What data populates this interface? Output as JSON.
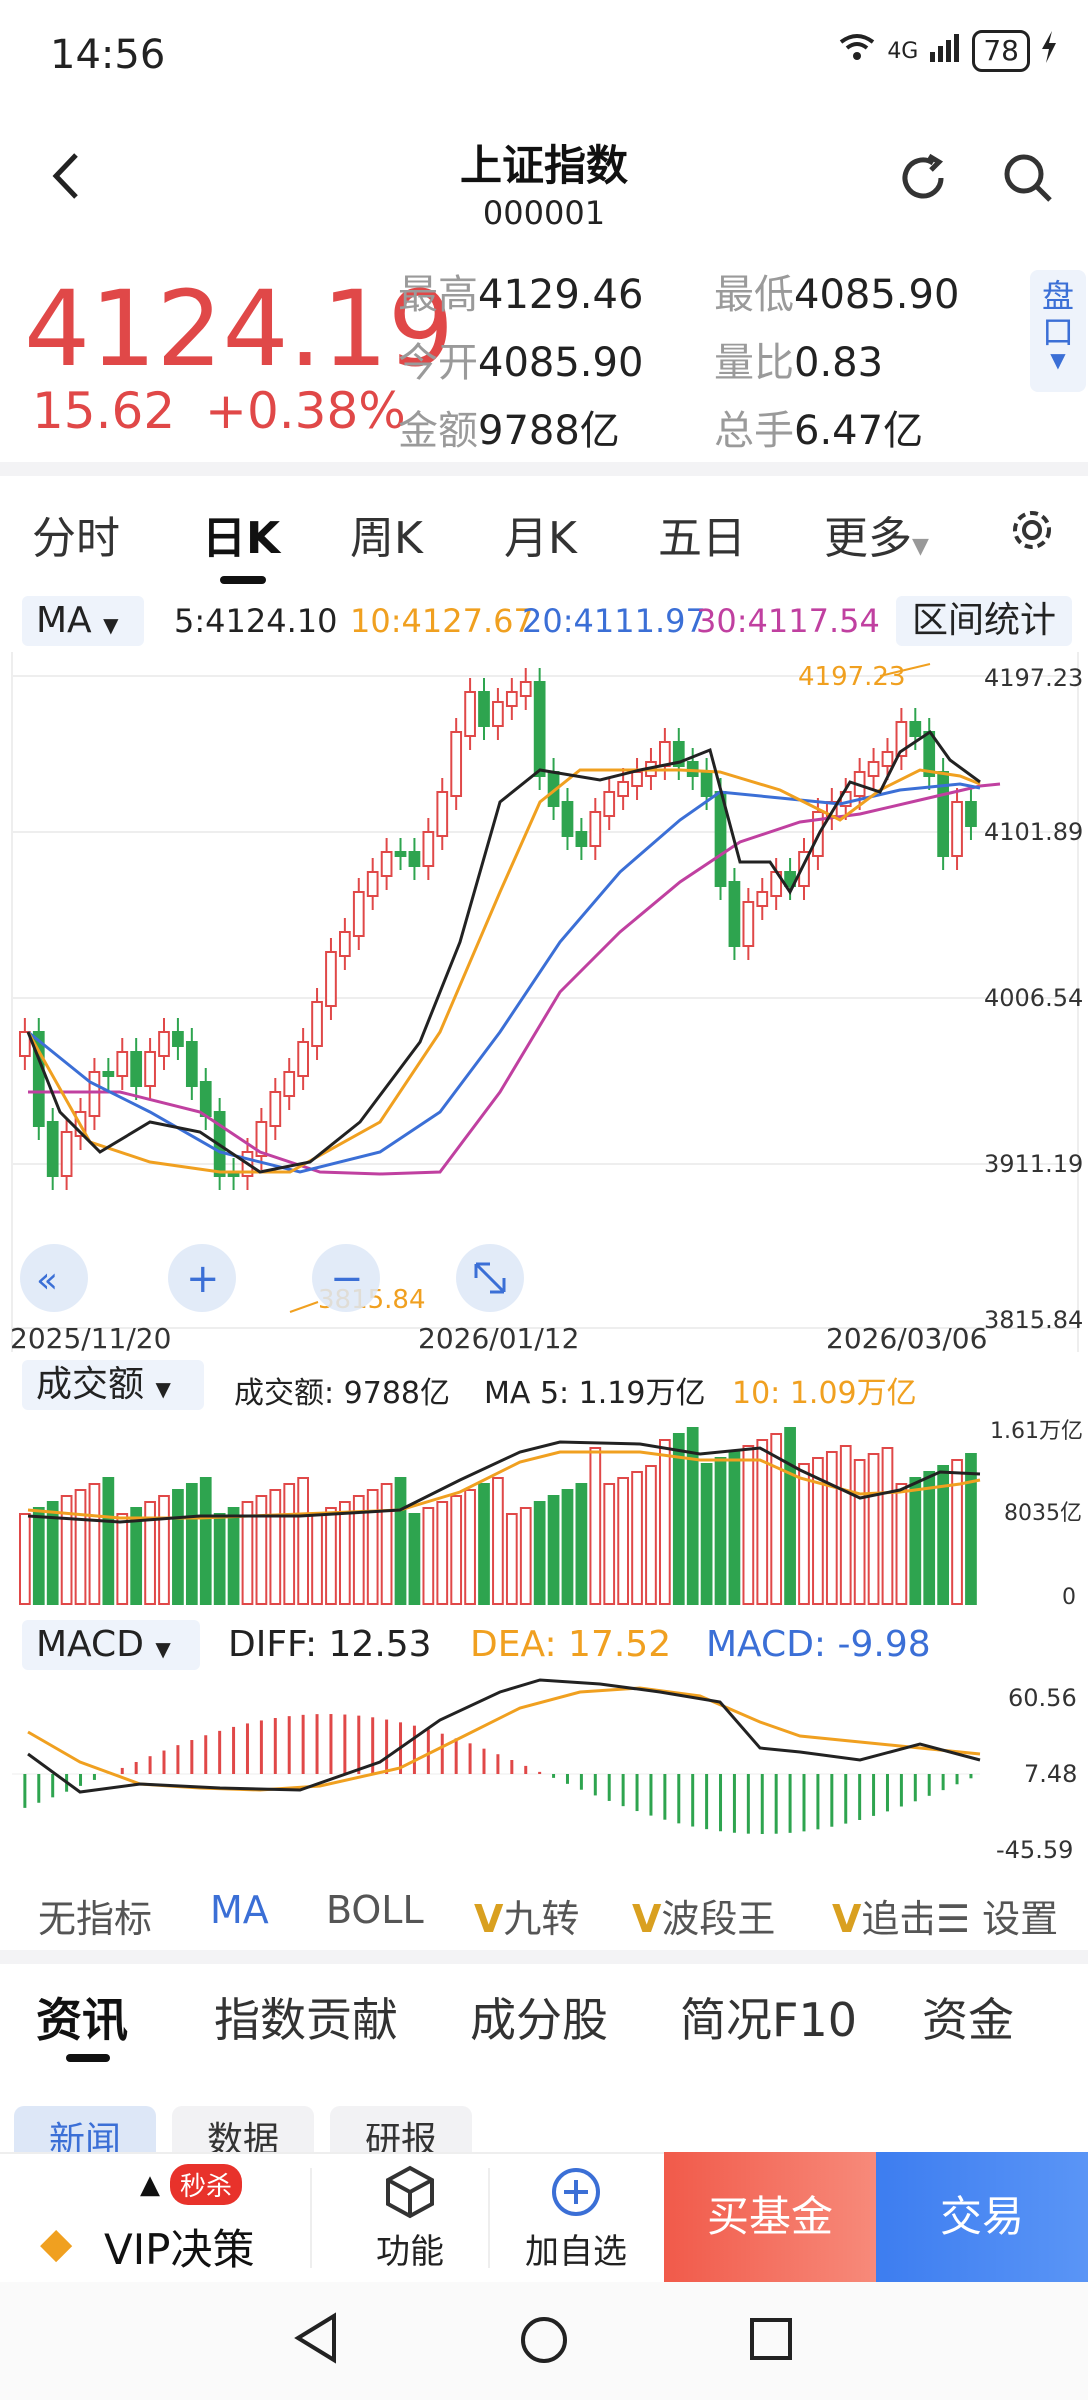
{
  "status": {
    "time": "14:56",
    "net": "6",
    "net2": "4G",
    "battery": "78"
  },
  "header": {
    "title": "上证指数",
    "code": "000001"
  },
  "quote": {
    "price": "4124.19",
    "change": "15.62",
    "change_pct": "+0.38%",
    "stats": [
      {
        "label": "最高",
        "value": "4129.46"
      },
      {
        "label": "最低",
        "value": "4085.90"
      },
      {
        "label": "今开",
        "value": "4085.90"
      },
      {
        "label": "量比",
        "value": "0.83"
      },
      {
        "label": "金额",
        "value": "9788亿"
      },
      {
        "label": "总手",
        "value": "6.47亿"
      }
    ],
    "pankou": "盘口"
  },
  "tabs": [
    "分时",
    "日K",
    "周K",
    "月K",
    "五日",
    "更多"
  ],
  "ma_bar": {
    "selector": "MA",
    "ma5": "5:4124.10",
    "ma10": "10:4127.67",
    "ma20": "20:4111.97",
    "ma30": "30:4117.54",
    "range_btn": "区间统计"
  },
  "kline": {
    "y_ticks": [
      "4197.23",
      "4101.89",
      "4006.54",
      "3911.19",
      "3815.84"
    ],
    "x_ticks": [
      "2025/11/20",
      "2026/01/12",
      "2026/03/06"
    ],
    "high_label": "4197.23",
    "low_label": "3815.84"
  },
  "volume": {
    "selector": "成交额",
    "amount": "成交额: 9788亿",
    "ma5": "MA 5: 1.19万亿",
    "ma10": "10: 1.09万亿",
    "y_ticks": [
      "1.61万亿",
      "8035亿",
      "0"
    ]
  },
  "macd": {
    "selector": "MACD",
    "diff": "DIFF: 12.53",
    "dea": "DEA: 17.52",
    "macd": "MACD: -9.98",
    "y_ticks": [
      "60.56",
      "7.48",
      "-45.59"
    ]
  },
  "indicators": [
    "无指标",
    "MA",
    "BOLL",
    "九转",
    "波段王",
    "追击",
    "设置"
  ],
  "news_tabs": [
    "资讯",
    "指数贡献",
    "成分股",
    "简况F10",
    "资金"
  ],
  "sub_tabs": [
    "新闻",
    "数据",
    "研报"
  ],
  "bottom": {
    "vip_badge": "秒杀",
    "vip": "VIP决策",
    "func": "功能",
    "add": "加自选",
    "fund": "买基金",
    "trade": "交易"
  },
  "colors": {
    "up": "#e04848",
    "down": "#2ea44f",
    "ma5": "#222222",
    "ma10": "#f0a020",
    "ma20": "#3b6fd6",
    "ma30": "#c040a0"
  }
}
